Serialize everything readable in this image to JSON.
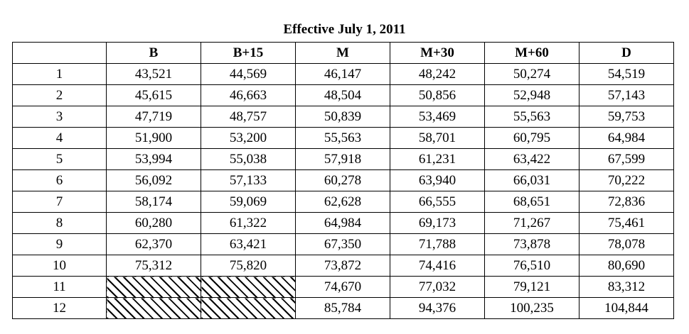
{
  "title": "Effective July 1, 2011",
  "table": {
    "columns": [
      "",
      "B",
      "B+15",
      "M",
      "M+30",
      "M+60",
      "D"
    ],
    "rows": [
      {
        "step": "1",
        "cells": [
          "43,521",
          "44,569",
          "46,147",
          "48,242",
          "50,274",
          "54,519"
        ]
      },
      {
        "step": "2",
        "cells": [
          "45,615",
          "46,663",
          "48,504",
          "50,856",
          "52,948",
          "57,143"
        ]
      },
      {
        "step": "3",
        "cells": [
          "47,719",
          "48,757",
          "50,839",
          "53,469",
          "55,563",
          "59,753"
        ]
      },
      {
        "step": "4",
        "cells": [
          "51,900",
          "53,200",
          "55,563",
          "58,701",
          "60,795",
          "64,984"
        ]
      },
      {
        "step": "5",
        "cells": [
          "53,994",
          "55,038",
          "57,918",
          "61,231",
          "63,422",
          "67,599"
        ]
      },
      {
        "step": "6",
        "cells": [
          "56,092",
          "57,133",
          "60,278",
          "63,940",
          "66,031",
          "70,222"
        ]
      },
      {
        "step": "7",
        "cells": [
          "58,174",
          "59,069",
          "62,628",
          "66,555",
          "68,651",
          "72,836"
        ]
      },
      {
        "step": "8",
        "cells": [
          "60,280",
          "61,322",
          "64,984",
          "69,173",
          "71,267",
          "75,461"
        ]
      },
      {
        "step": "9",
        "cells": [
          "62,370",
          "63,421",
          "67,350",
          "71,788",
          "73,878",
          "78,078"
        ]
      },
      {
        "step": "10",
        "cells": [
          "75,312",
          "75,820",
          "73,872",
          "74,416",
          "76,510",
          "80,690"
        ]
      },
      {
        "step": "11",
        "cells": [
          null,
          null,
          "74,670",
          "77,032",
          "79,121",
          "83,312"
        ]
      },
      {
        "step": "12",
        "cells": [
          null,
          null,
          "85,784",
          "94,376",
          "100,235",
          "104,844"
        ]
      }
    ]
  }
}
